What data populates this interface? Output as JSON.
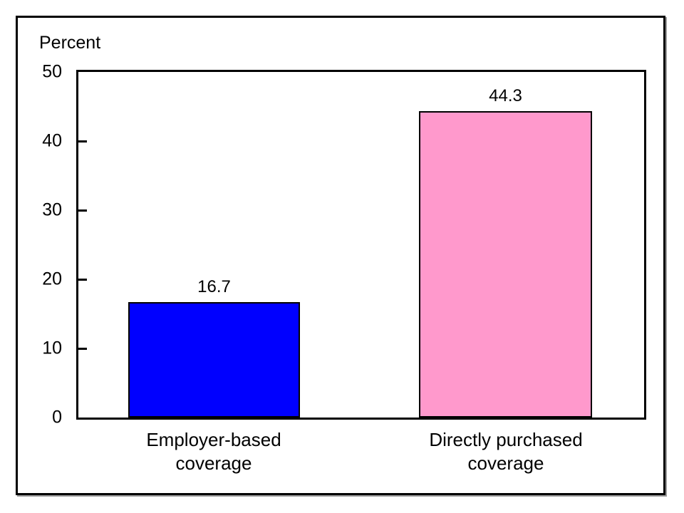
{
  "chart_data": {
    "type": "bar",
    "title": "",
    "ylabel": "Percent",
    "xlabel": "",
    "categories": [
      "Employer-based coverage",
      "Directly purchased coverage"
    ],
    "values": [
      16.7,
      44.3
    ],
    "value_labels": [
      "16.7",
      "44.3"
    ],
    "bar_colors": [
      "#0000ff",
      "#ff99cc"
    ],
    "bar_border_color": "#000000",
    "yticks": [
      0,
      10,
      20,
      30,
      40,
      50
    ],
    "ylim": [
      0,
      50
    ],
    "grid": false,
    "legend": "none"
  }
}
